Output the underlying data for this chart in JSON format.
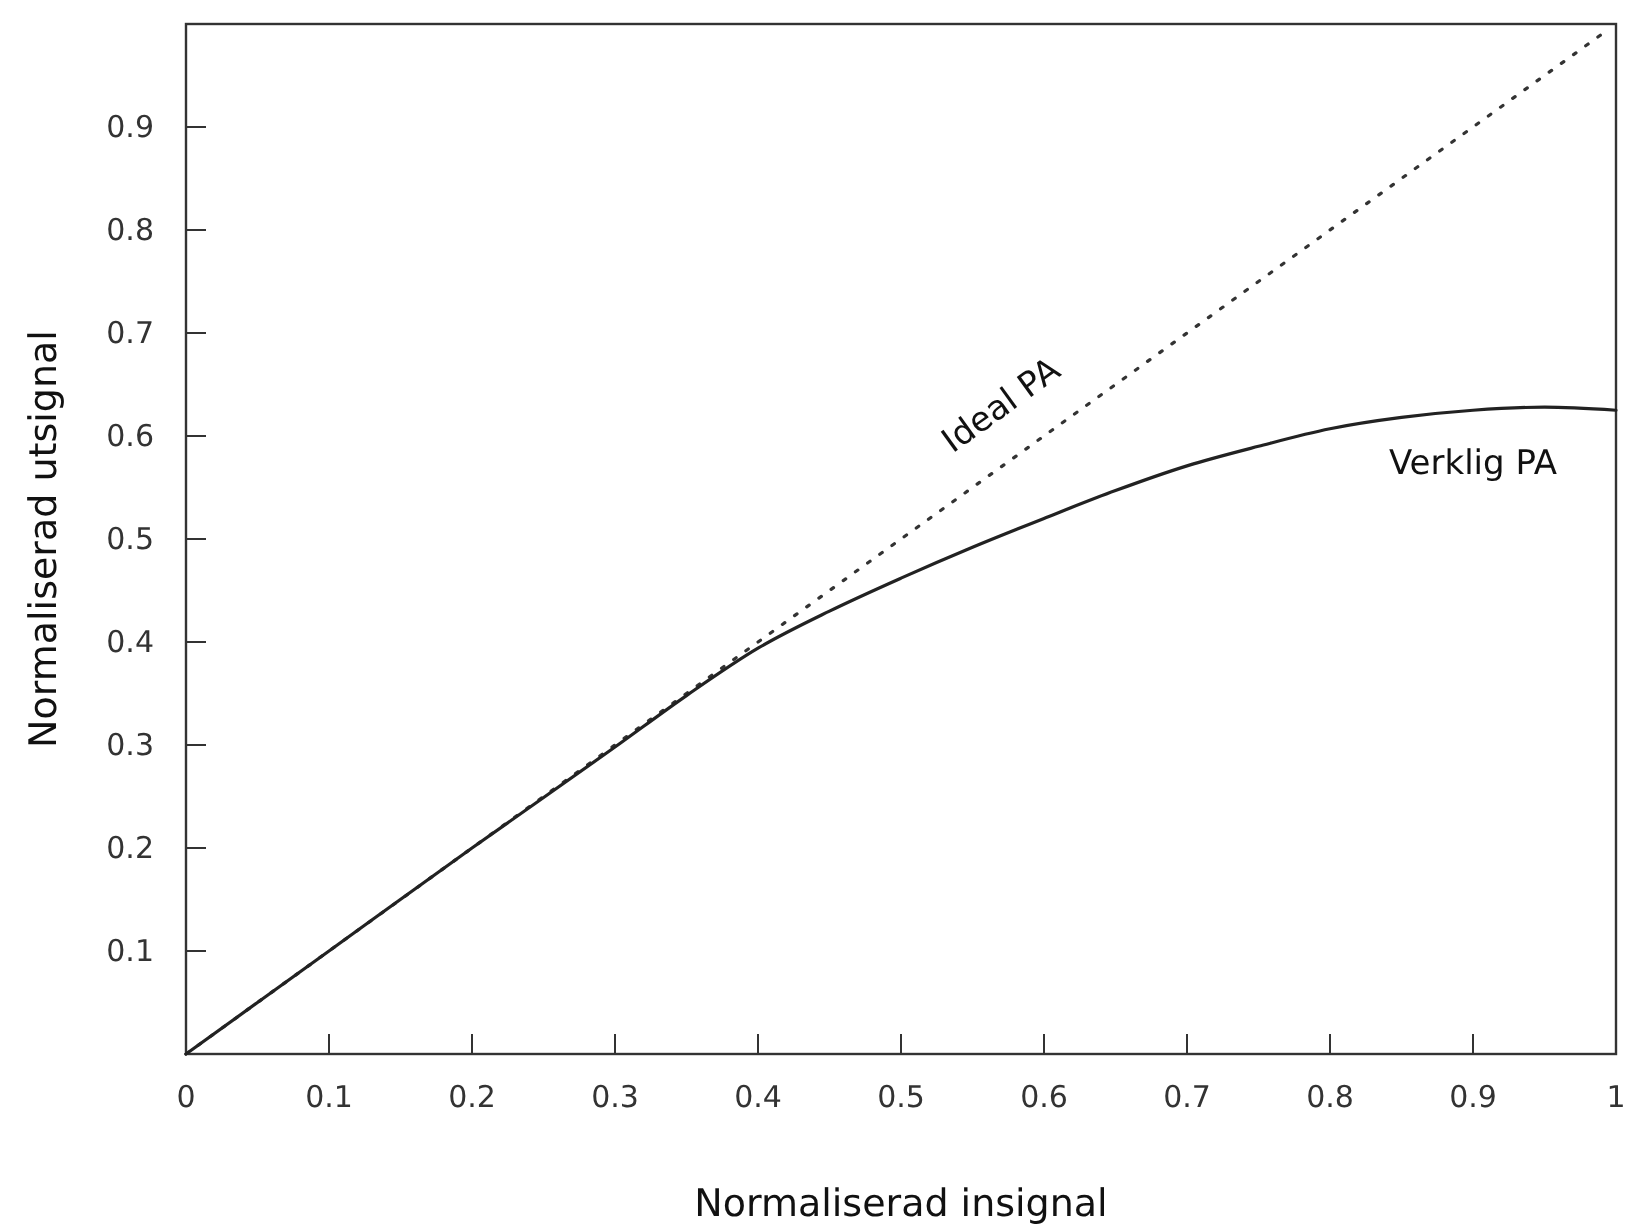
{
  "chart_data": {
    "type": "line",
    "xlabel": "Normaliserad insignal",
    "ylabel": "Normaliserad utsignal",
    "xlim": [
      0,
      1
    ],
    "ylim": [
      0,
      1
    ],
    "xticks": [
      0,
      0.1,
      0.2,
      0.3,
      0.4,
      0.5,
      0.6,
      0.7,
      0.8,
      0.9,
      1
    ],
    "yticks": [
      0.1,
      0.2,
      0.3,
      0.4,
      0.5,
      0.6,
      0.7,
      0.8,
      0.9
    ],
    "grid": false,
    "legend": false,
    "marker": "none",
    "series": [
      {
        "name": "Ideal PA",
        "color": "#333333",
        "line_style": "dotted",
        "x": [
          0,
          0.99
        ],
        "values": [
          0,
          0.99
        ]
      },
      {
        "name": "Verklig PA",
        "color": "#222222",
        "line_style": "solid",
        "x": [
          0,
          0.1,
          0.2,
          0.3,
          0.35,
          0.4,
          0.45,
          0.5,
          0.55,
          0.6,
          0.65,
          0.7,
          0.75,
          0.8,
          0.85,
          0.9,
          0.95,
          1
        ],
        "values": [
          0,
          0.1,
          0.2,
          0.298,
          0.348,
          0.394,
          0.43,
          0.462,
          0.492,
          0.52,
          0.547,
          0.571,
          0.59,
          0.607,
          0.618,
          0.625,
          0.628,
          0.625
        ]
      }
    ]
  }
}
